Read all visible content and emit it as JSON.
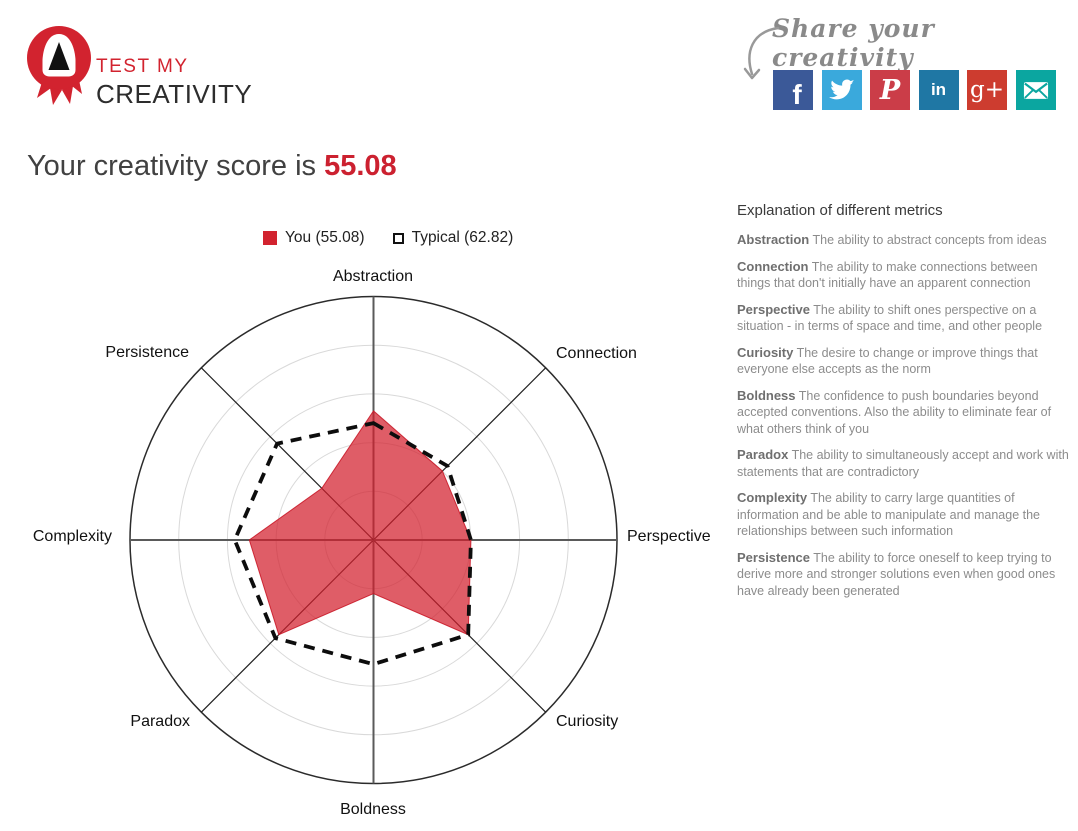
{
  "header": {
    "logo": {
      "line1": "TEST MY",
      "line2": "CREATIVITY",
      "brand_red": "#d2232f"
    },
    "share": {
      "caption": "Share your creativity",
      "icons": [
        {
          "name": "facebook-icon",
          "color": "#3b5998",
          "glyph": "f"
        },
        {
          "name": "twitter-icon",
          "color": "#3aa9dc",
          "glyph": ""
        },
        {
          "name": "pinterest-icon",
          "color": "#cb3d48",
          "glyph": "P"
        },
        {
          "name": "linkedin-icon",
          "color": "#1f77a4",
          "glyph": "in"
        },
        {
          "name": "googleplus-icon",
          "color": "#cd3c2f",
          "glyph": "g+"
        },
        {
          "name": "email-icon",
          "color": "#0ba6a0",
          "glyph": ""
        }
      ]
    }
  },
  "score": {
    "prefix": "Your creativity score is",
    "value": "55.08"
  },
  "chart_data": {
    "type": "radar",
    "categories": [
      "Abstraction",
      "Connection",
      "Perspective",
      "Curiosity",
      "Boldness",
      "Paradox",
      "Complexity",
      "Persistence"
    ],
    "series": [
      {
        "name": "You (55.08)",
        "values": [
          53,
          40,
          40,
          55,
          22,
          55,
          51,
          30
        ],
        "style": "filled",
        "color": "rgba(210,31,45,0.72)",
        "edge": "rgba(200,20,35,0.85)"
      },
      {
        "name": "Typical (62.82)",
        "values": [
          48,
          43,
          40,
          55,
          51,
          57,
          57,
          56
        ],
        "style": "dashed",
        "color": "#0d0d0d"
      }
    ],
    "rings": [
      20,
      40,
      60,
      80,
      100
    ],
    "rmax": 100,
    "legend_position": "top",
    "title": "Your creativity score is 55.08"
  },
  "explanations": {
    "title": "Explanation of different metrics",
    "items": [
      {
        "term": "Abstraction",
        "desc": "The ability to abstract concepts from ideas"
      },
      {
        "term": "Connection",
        "desc": "The ability to make connections between things that don't initially have an apparent connection"
      },
      {
        "term": "Perspective",
        "desc": "The ability to shift ones perspective on a situation - in terms of space and time, and other people"
      },
      {
        "term": "Curiosity",
        "desc": "The desire to change or improve things that everyone else accepts as the norm"
      },
      {
        "term": "Boldness",
        "desc": "The confidence to push boundaries beyond accepted conventions. Also the ability to eliminate fear of what others think of you"
      },
      {
        "term": "Paradox",
        "desc": "The ability to simultaneously accept and work with statements that are contradictory"
      },
      {
        "term": "Complexity",
        "desc": "The ability to carry large quantities of information and be able to manipulate and manage the relationships between such information"
      },
      {
        "term": "Persistence",
        "desc": "The ability to force oneself to keep trying to derive more and stronger solutions even when good ones have already been generated"
      }
    ]
  }
}
